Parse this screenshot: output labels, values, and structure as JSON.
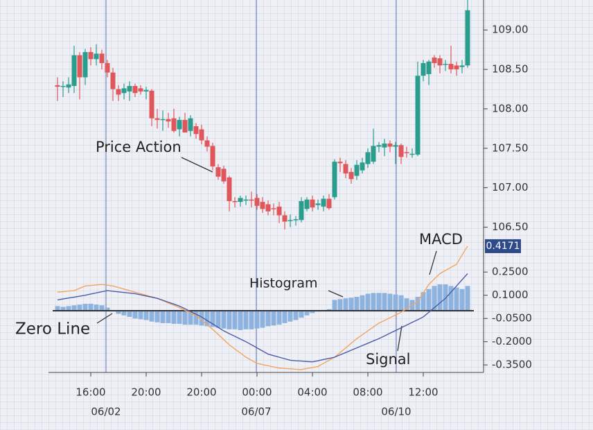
{
  "chart_data": [
    {
      "type": "candlestick",
      "categories": [
        null,
        null,
        null,
        null,
        null,
        null,
        "16:00",
        null,
        null,
        null,
        null,
        null,
        null,
        null,
        null,
        null,
        "20:00",
        null,
        null,
        null,
        null,
        null,
        null,
        null,
        null,
        null,
        "20:00",
        null,
        null,
        null,
        null,
        null,
        null,
        null,
        null,
        null,
        "00:00",
        null,
        null,
        null,
        null,
        null,
        null,
        null,
        null,
        null,
        "04:00",
        null,
        null,
        null,
        null,
        null,
        null,
        null,
        null,
        null,
        "08:00",
        null,
        null,
        null,
        null,
        null,
        null,
        null,
        null,
        null,
        "12:00",
        null,
        null,
        null,
        null,
        null,
        null,
        null,
        null
      ],
      "dates": [
        "06/02",
        "06/07",
        "06/10"
      ],
      "open": [
        108.3,
        108.28,
        108.27,
        108.29,
        108.68,
        108.4,
        108.72,
        108.63,
        108.7,
        108.58,
        108.46,
        108.25,
        108.2,
        108.22,
        108.29,
        108.26,
        108.22,
        108.23,
        107.88,
        107.86,
        107.87,
        107.88,
        107.74,
        107.86,
        107.72,
        107.78,
        107.74,
        107.6,
        107.53,
        107.26,
        107.24,
        107.13,
        106.83,
        106.82,
        106.84,
        106.85,
        106.87,
        106.82,
        106.79,
        106.74,
        106.76,
        106.65,
        106.58,
        106.59,
        106.59,
        106.73,
        106.85,
        106.78,
        106.76,
        106.86,
        106.88,
        107.33,
        107.3,
        107.2,
        107.15,
        107.22,
        107.3,
        107.33,
        107.52,
        107.51,
        107.56,
        107.52,
        107.54,
        107.45,
        107.42,
        107.42,
        108.42,
        108.44,
        108.65,
        108.64,
        108.56,
        108.57,
        108.55,
        108.53,
        108.55
      ],
      "high": [
        108.4,
        108.35,
        108.4,
        108.8,
        108.72,
        108.76,
        108.78,
        108.82,
        108.75,
        108.62,
        108.52,
        108.3,
        108.32,
        108.35,
        108.32,
        108.3,
        108.28,
        108.25,
        108.0,
        107.98,
        107.95,
        108.0,
        107.9,
        107.95,
        107.92,
        107.82,
        107.8,
        107.65,
        107.57,
        107.3,
        107.28,
        107.15,
        106.88,
        106.9,
        106.9,
        106.95,
        106.92,
        106.88,
        106.84,
        106.8,
        106.82,
        106.7,
        106.66,
        106.64,
        106.88,
        106.88,
        106.9,
        106.85,
        106.9,
        106.92,
        107.36,
        107.38,
        107.35,
        107.25,
        107.35,
        107.38,
        107.5,
        107.75,
        107.58,
        107.62,
        107.6,
        107.58,
        107.56,
        107.52,
        107.5,
        108.6,
        108.62,
        108.62,
        108.68,
        108.68,
        108.62,
        108.8,
        108.6,
        108.62,
        109.4
      ],
      "low": [
        108.1,
        108.15,
        108.2,
        108.2,
        108.12,
        108.3,
        108.55,
        108.55,
        108.5,
        108.4,
        108.1,
        108.1,
        108.12,
        108.1,
        108.15,
        108.18,
        108.12,
        107.78,
        107.75,
        107.72,
        107.76,
        107.7,
        107.65,
        107.7,
        107.65,
        107.62,
        107.55,
        107.46,
        107.22,
        107.1,
        107.05,
        106.7,
        106.75,
        106.76,
        106.78,
        106.75,
        106.72,
        106.68,
        106.65,
        106.65,
        106.55,
        106.47,
        106.5,
        106.52,
        106.56,
        106.7,
        106.7,
        106.72,
        106.7,
        106.72,
        106.85,
        107.2,
        107.12,
        107.05,
        107.1,
        107.18,
        107.25,
        107.3,
        107.45,
        107.4,
        107.45,
        107.3,
        107.3,
        107.38,
        107.38,
        107.4,
        108.35,
        108.3,
        108.52,
        108.45,
        108.48,
        108.45,
        108.42,
        108.45,
        108.52
      ],
      "close": [
        108.28,
        108.29,
        108.31,
        108.68,
        108.4,
        108.72,
        108.63,
        108.7,
        108.58,
        108.46,
        108.25,
        108.18,
        108.26,
        108.29,
        108.2,
        108.22,
        108.24,
        107.88,
        107.86,
        107.87,
        107.84,
        107.72,
        107.86,
        107.7,
        107.88,
        107.68,
        107.6,
        107.52,
        107.27,
        107.14,
        107.08,
        106.83,
        106.82,
        106.87,
        106.85,
        106.84,
        106.77,
        106.73,
        106.7,
        106.73,
        106.65,
        106.57,
        106.59,
        106.6,
        106.83,
        106.85,
        106.75,
        106.8,
        106.86,
        106.74,
        107.33,
        107.31,
        107.18,
        107.11,
        107.29,
        107.32,
        107.45,
        107.53,
        107.54,
        107.56,
        107.52,
        107.54,
        107.39,
        107.44,
        107.43,
        108.42,
        108.58,
        108.6,
        108.58,
        108.55,
        108.57,
        108.5,
        108.5,
        108.55,
        109.25
      ],
      "up_color": "#2a9d8f",
      "down_color": "#e0575b",
      "ylim": [
        106.39,
        109.38
      ],
      "yticks": [
        {
          "value": 106.5,
          "label": "106.50"
        },
        {
          "value": 107,
          "label": "107.00"
        },
        {
          "value": 107.5,
          "label": "107.50"
        },
        {
          "value": 108,
          "label": "108.00"
        },
        {
          "value": 108.5,
          "label": "108.50"
        },
        {
          "value": 109,
          "label": "109.00"
        }
      ],
      "annotations": [
        "Price Action"
      ]
    },
    {
      "type": "macd",
      "series": [
        {
          "name": "MACD",
          "color": "#f4a460",
          "values": [
            0.12,
            0.123,
            0.127,
            0.13,
            0.145,
            0.16,
            0.163,
            0.167,
            0.17,
            0.165,
            0.16,
            0.15,
            0.14,
            0.13,
            0.12,
            0.11,
            0.1,
            0.09,
            0.08,
            0.065,
            0.05,
            0.035,
            0.02,
            0.003,
            -0.013,
            -0.03,
            -0.06,
            -0.09,
            -0.12,
            -0.153,
            -0.187,
            -0.22,
            -0.247,
            -0.273,
            -0.3,
            -0.32,
            -0.34,
            -0.348,
            -0.355,
            -0.363,
            -0.37,
            -0.373,
            -0.375,
            -0.378,
            -0.38,
            -0.373,
            -0.367,
            -0.36,
            -0.34,
            -0.32,
            -0.3,
            -0.27,
            -0.24,
            -0.21,
            -0.18,
            -0.155,
            -0.13,
            -0.105,
            -0.08,
            -0.063,
            -0.045,
            -0.028,
            -0.01,
            0.013,
            0.037,
            0.06,
            0.115,
            0.17,
            0.205,
            0.24,
            0.26,
            0.28,
            0.3,
            0.36,
            0.4171
          ]
        },
        {
          "name": "Signal",
          "color": "#4a5aa8",
          "values": [
            0.07,
            0.076,
            0.082,
            0.088,
            0.094,
            0.1,
            0.108,
            0.115,
            0.123,
            0.13,
            0.126,
            0.122,
            0.118,
            0.114,
            0.11,
            0.103,
            0.095,
            0.088,
            0.08,
            0.068,
            0.055,
            0.043,
            0.03,
            0.013,
            -0.005,
            -0.023,
            -0.04,
            -0.063,
            -0.085,
            -0.108,
            -0.13,
            -0.148,
            -0.165,
            -0.183,
            -0.2,
            -0.22,
            -0.24,
            -0.26,
            -0.28,
            -0.29,
            -0.3,
            -0.31,
            -0.32,
            -0.323,
            -0.325,
            -0.328,
            -0.33,
            -0.323,
            -0.315,
            -0.308,
            -0.3,
            -0.285,
            -0.27,
            -0.255,
            -0.24,
            -0.225,
            -0.21,
            -0.195,
            -0.18,
            -0.163,
            -0.145,
            -0.128,
            -0.11,
            -0.093,
            -0.075,
            -0.058,
            -0.04,
            -0.01,
            0.02,
            0.05,
            0.08,
            0.12,
            0.16,
            0.2,
            0.24
          ]
        }
      ],
      "histogram": {
        "name": "Histogram",
        "color": "#8fb3df",
        "values": [
          0.03,
          0.025,
          0.03,
          0.035,
          0.04,
          0.045,
          0.045,
          0.04,
          0.035,
          0.02,
          0.0,
          -0.02,
          -0.03,
          -0.04,
          -0.05,
          -0.055,
          -0.06,
          -0.07,
          -0.075,
          -0.08,
          -0.08,
          -0.085,
          -0.085,
          -0.09,
          -0.09,
          -0.09,
          -0.095,
          -0.1,
          -0.105,
          -0.11,
          -0.115,
          -0.12,
          -0.12,
          -0.125,
          -0.12,
          -0.12,
          -0.115,
          -0.11,
          -0.1,
          -0.095,
          -0.09,
          -0.08,
          -0.07,
          -0.06,
          -0.045,
          -0.03,
          -0.015,
          -0.005,
          0.005,
          0.01,
          0.07,
          0.075,
          0.08,
          0.085,
          0.09,
          0.1,
          0.11,
          0.115,
          0.115,
          0.115,
          0.11,
          0.105,
          0.1,
          0.08,
          0.07,
          0.09,
          0.12,
          0.14,
          0.16,
          0.17,
          0.17,
          0.16,
          0.15,
          0.14,
          0.16
        ]
      },
      "ylim": [
        -0.403,
        0.484
      ],
      "yticks": [
        {
          "value": 0.25,
          "label": "0.2500"
        },
        {
          "value": 0.1,
          "label": "0.1000"
        },
        {
          "value": -0.05,
          "label": "-0.0500"
        },
        {
          "value": -0.2,
          "label": "-0.2000"
        },
        {
          "value": -0.35,
          "label": "-0.3500"
        }
      ],
      "annotations": [
        "Zero Line"
      ]
    }
  ]
}
